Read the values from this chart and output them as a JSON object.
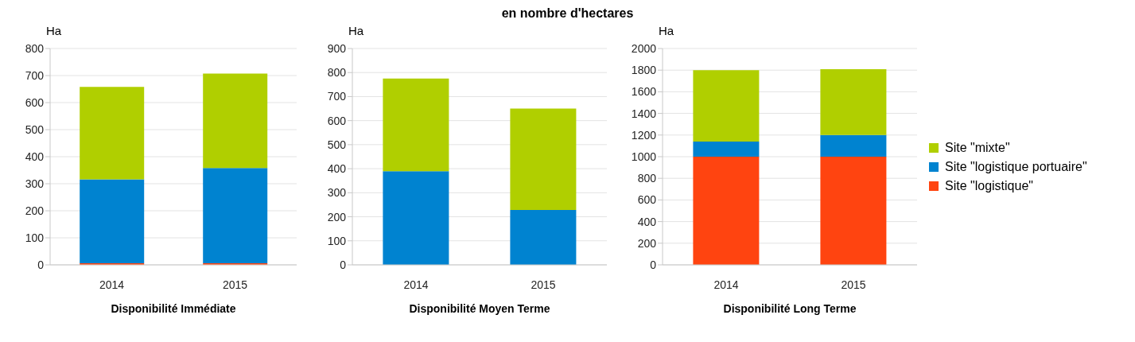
{
  "chart_data": [
    {
      "type": "bar",
      "stacked": true,
      "xlabel": "Disponibilité Immédiate",
      "ylabel": "Ha",
      "categories": [
        "2014",
        "2015"
      ],
      "ylim": [
        0,
        800
      ],
      "yticks": [
        0,
        100,
        200,
        300,
        400,
        500,
        600,
        700,
        800
      ],
      "grid": "y",
      "legend": false,
      "series": [
        {
          "color": "#ff4410",
          "values": [
            6,
            6
          ]
        },
        {
          "color": "#0083d0",
          "values": [
            310,
            352
          ]
        },
        {
          "color": "#b0cf00",
          "values": [
            342,
            349
          ]
        }
      ]
    },
    {
      "type": "bar",
      "stacked": true,
      "title": "en nombre d'hectares",
      "xlabel": "Disponibilité Moyen Terme",
      "ylabel": "Ha",
      "categories": [
        "2014",
        "2015"
      ],
      "ylim": [
        0,
        900
      ],
      "yticks": [
        0,
        100,
        200,
        300,
        400,
        500,
        600,
        700,
        800,
        900
      ],
      "grid": "y",
      "legend": false,
      "series": [
        {
          "color": "#0083d0",
          "values": [
            390,
            228
          ]
        },
        {
          "color": "#b0cf00",
          "values": [
            385,
            422
          ]
        }
      ]
    },
    {
      "type": "bar",
      "stacked": true,
      "xlabel": "Disponibilité Long Terme",
      "ylabel": "Ha",
      "categories": [
        "2014",
        "2015"
      ],
      "ylim": [
        0,
        2000
      ],
      "yticks": [
        0,
        200,
        400,
        600,
        800,
        1000,
        1200,
        1400,
        1600,
        1800,
        2000
      ],
      "grid": "y",
      "legend": "right",
      "series": [
        {
          "name": "Site \"logistique\"",
          "color": "#ff4410",
          "values": [
            1000,
            1000
          ]
        },
        {
          "name": "Site \"logistique portuaire\"",
          "color": "#0083d0",
          "values": [
            140,
            200
          ]
        },
        {
          "name": "Site \"mixte\"",
          "color": "#b0cf00",
          "values": [
            660,
            608
          ]
        }
      ]
    }
  ]
}
